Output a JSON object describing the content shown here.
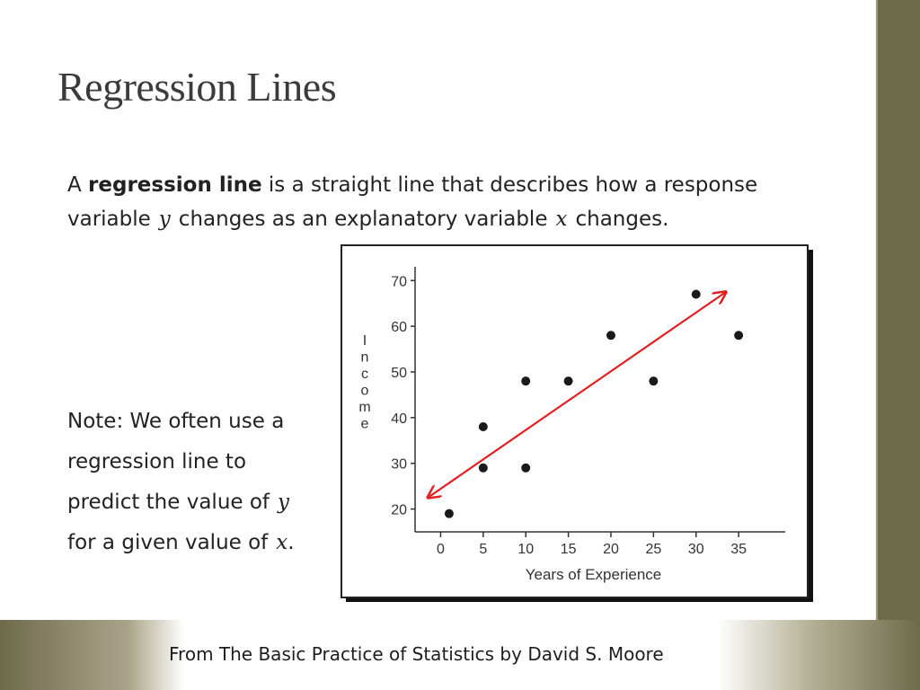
{
  "slide": {
    "title": "Regression Lines",
    "intro": {
      "prefix": "A ",
      "bold": "regression line",
      "text1": " is a straight line that describes how a response variable",
      "var_y": "y",
      "text2": "changes as an explanatory variable",
      "var_x": "x",
      "text3": "changes."
    },
    "note": {
      "line1": "Note: We often use a",
      "line2": "regression line to",
      "line3_prefix": "predict the value of",
      "var_y": "y",
      "line4_prefix": "for a given value of",
      "var_x": "x",
      "line4_suffix": "."
    },
    "citation": "From The Basic Practice of Statistics by David S. Moore",
    "colors": {
      "sidebar": "#6e6a4c",
      "band": "#6e6a4c",
      "regression_line": "#e02020",
      "points": "#1a1a1a"
    }
  },
  "chart_data": {
    "type": "scatter",
    "xlabel": "Years of Experience",
    "ylabel": "Income",
    "xticks": [
      0,
      5,
      10,
      15,
      20,
      25,
      30,
      35
    ],
    "yticks": [
      20,
      30,
      40,
      50,
      60,
      70
    ],
    "xlim": [
      -3,
      41
    ],
    "ylim": [
      15,
      73
    ],
    "points": [
      {
        "x": 1,
        "y": 19
      },
      {
        "x": 5,
        "y": 29
      },
      {
        "x": 5,
        "y": 38
      },
      {
        "x": 10,
        "y": 29
      },
      {
        "x": 10,
        "y": 48
      },
      {
        "x": 15,
        "y": 48
      },
      {
        "x": 20,
        "y": 58
      },
      {
        "x": 25,
        "y": 48
      },
      {
        "x": 30,
        "y": 67
      },
      {
        "x": 35,
        "y": 58
      }
    ],
    "regression_line": {
      "x1": -1.5,
      "y1": 22.5,
      "x2": 33.5,
      "y2": 67.5,
      "arrows": "both"
    },
    "grid": false,
    "legend": "none"
  }
}
